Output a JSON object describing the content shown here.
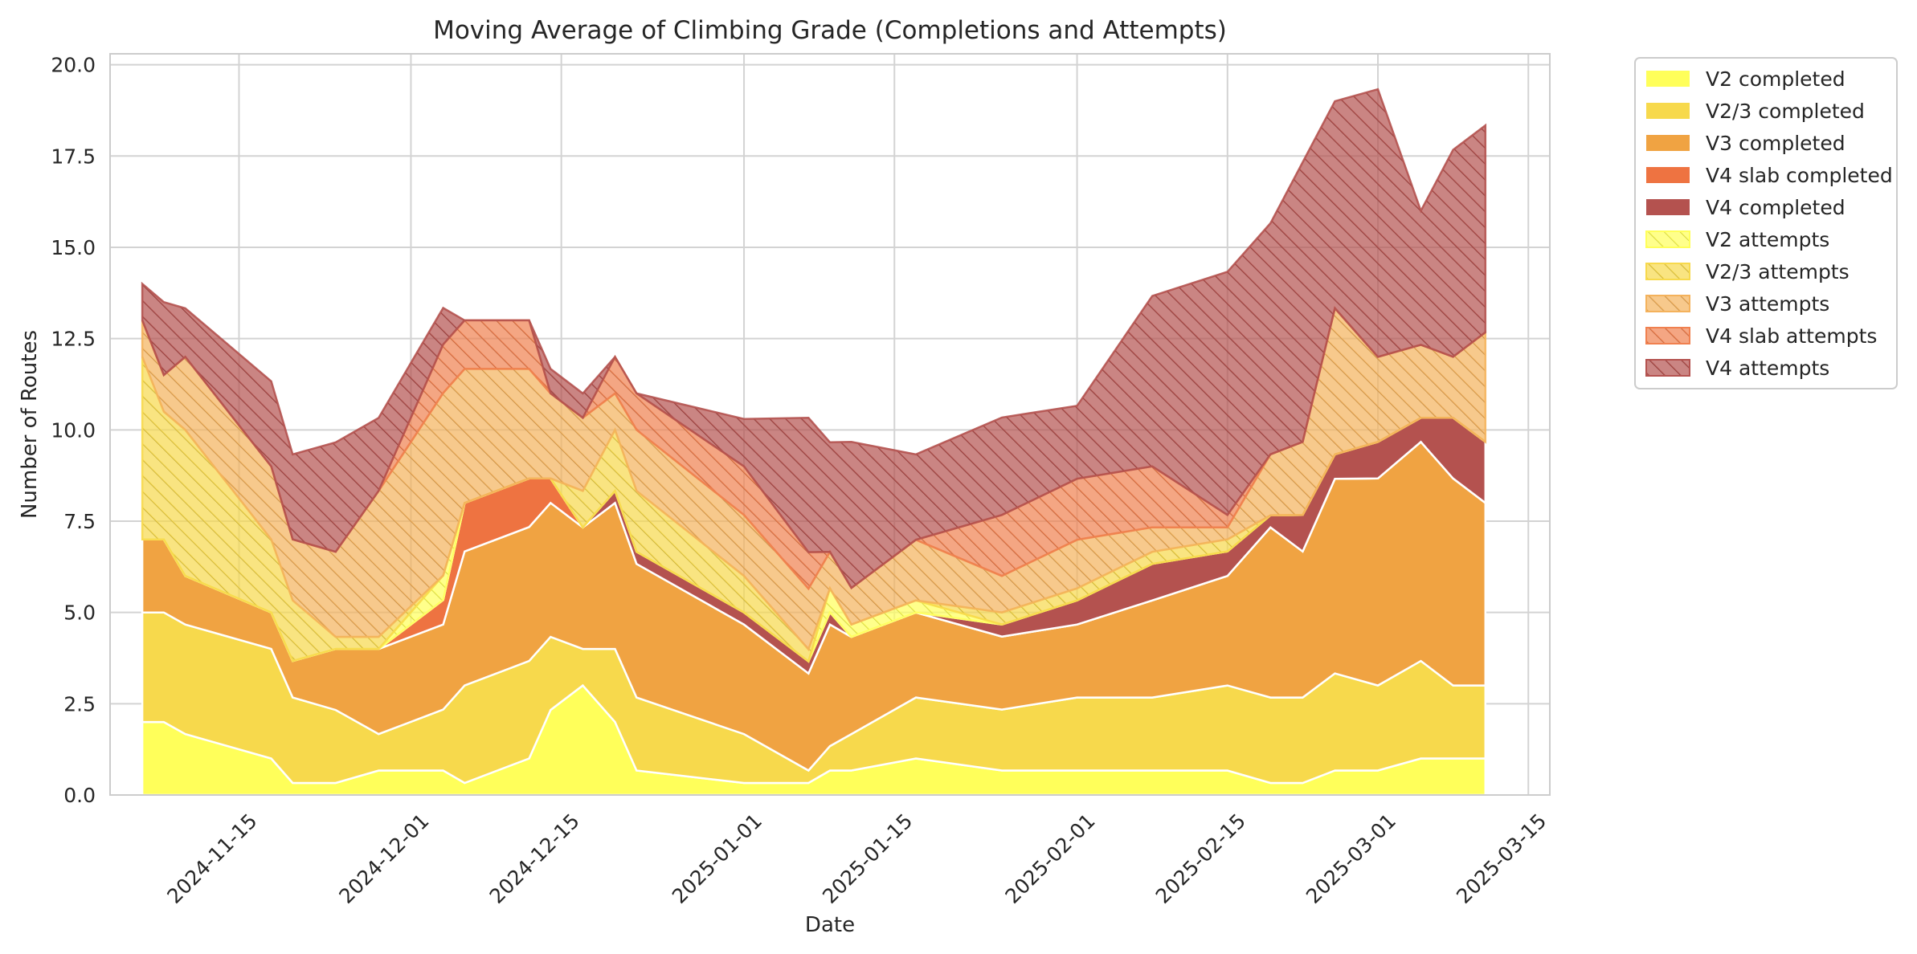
{
  "chart_data": {
    "type": "area",
    "title": "Moving Average of Climbing Grade (Completions and Attempts)",
    "xlabel": "Date",
    "ylabel": "Number of Routes",
    "ylim": [
      0,
      20.3
    ],
    "xlim": [
      "2024-11-03",
      "2025-03-17"
    ],
    "grid": true,
    "legend": "outside-right",
    "x_ticks": [
      "2024-11-15",
      "2024-12-01",
      "2024-12-15",
      "2025-01-01",
      "2025-01-15",
      "2025-02-01",
      "2025-02-15",
      "2025-03-01",
      "2025-03-15"
    ],
    "y_ticks": [
      "0.0",
      "2.5",
      "5.0",
      "7.5",
      "10.0",
      "12.5",
      "15.0",
      "17.5",
      "20.0"
    ],
    "x": [
      "2024-11-06",
      "2024-11-08",
      "2024-11-10",
      "2024-11-18",
      "2024-11-20",
      "2024-11-24",
      "2024-11-28",
      "2024-12-04",
      "2024-12-06",
      "2024-12-12",
      "2024-12-14",
      "2024-12-17",
      "2024-12-20",
      "2024-12-22",
      "2025-01-01",
      "2025-01-07",
      "2025-01-09",
      "2025-01-11",
      "2025-01-17",
      "2025-01-25",
      "2025-02-01",
      "2025-02-08",
      "2025-02-15",
      "2025-02-19",
      "2025-02-22",
      "2025-02-25",
      "2025-03-01",
      "2025-03-05",
      "2025-03-08",
      "2025-03-11"
    ],
    "series": [
      {
        "name": "V2 completed",
        "color": "#ffff5a",
        "hatch": false,
        "values": [
          2.0,
          2.0,
          1.67,
          1.0,
          0.33,
          0.33,
          0.67,
          0.67,
          0.33,
          1.0,
          2.33,
          3.0,
          2.0,
          0.67,
          0.33,
          0.33,
          0.67,
          0.67,
          1.0,
          0.67,
          0.67,
          0.67,
          0.67,
          0.33,
          0.33,
          0.67,
          0.67,
          1.0,
          1.0,
          1.0
        ]
      },
      {
        "name": "V2/3 completed",
        "color": "#f7d94c",
        "hatch": false,
        "values": [
          3.0,
          3.0,
          3.0,
          3.0,
          2.34,
          2.0,
          1.0,
          1.67,
          2.67,
          2.67,
          2.0,
          1.0,
          2.0,
          2.0,
          1.34,
          0.34,
          0.67,
          1.0,
          1.67,
          1.67,
          2.0,
          2.0,
          2.33,
          2.34,
          2.34,
          2.66,
          2.33,
          2.67,
          2.0,
          2.0
        ]
      },
      {
        "name": "V3 completed",
        "color": "#f0a342",
        "hatch": false,
        "values": [
          2.0,
          2.0,
          1.33,
          1.0,
          1.0,
          1.67,
          2.33,
          2.33,
          3.67,
          3.67,
          3.67,
          3.33,
          4.0,
          3.66,
          3.0,
          2.66,
          3.33,
          2.66,
          2.33,
          2.0,
          2.0,
          2.66,
          3.0,
          4.66,
          4.0,
          5.33,
          5.67,
          6.0,
          5.67,
          5.0
        ]
      },
      {
        "name": "V4 slab completed",
        "color": "#ee7341",
        "hatch": false,
        "values": [
          0,
          0,
          0,
          0,
          0,
          0,
          0,
          0.67,
          1.33,
          1.33,
          0.67,
          0,
          0,
          0,
          0,
          0,
          0,
          0,
          0,
          0,
          0,
          0,
          0,
          0,
          0,
          0,
          0,
          0,
          0,
          0
        ]
      },
      {
        "name": "V4 completed",
        "color": "#b4524f",
        "hatch": false,
        "values": [
          0,
          0,
          0,
          0,
          0,
          0,
          0,
          0,
          0,
          0,
          0,
          0,
          0.33,
          0.33,
          0.33,
          0.33,
          0.33,
          0,
          0,
          0.33,
          0.66,
          1.0,
          0.67,
          0.33,
          1.0,
          0.67,
          1.0,
          0.66,
          1.66,
          1.67
        ]
      },
      {
        "name": "V2 attempts",
        "color": "#ffff5a",
        "hatch": true,
        "values": [
          0,
          0,
          0,
          0,
          0,
          0,
          0,
          0.67,
          0,
          0,
          0,
          0,
          0,
          0,
          0,
          0,
          0.66,
          0.34,
          0.33,
          0,
          0,
          0,
          0,
          0,
          0,
          0,
          0,
          0,
          0,
          0
        ]
      },
      {
        "name": "V2/3 attempts",
        "color": "#f7d94c",
        "hatch": true,
        "values": [
          5.0,
          3.5,
          4.0,
          2.0,
          1.66,
          0.33,
          0.33,
          0,
          0,
          0,
          0,
          1.0,
          1.67,
          1.67,
          1.0,
          0.33,
          0,
          0,
          0,
          0.33,
          0.33,
          0.33,
          0.33,
          0,
          0,
          0,
          0,
          0,
          0,
          0
        ]
      },
      {
        "name": "V3 attempts",
        "color": "#f4b25c",
        "hatch": true,
        "values": [
          1.0,
          1.0,
          2.0,
          2.0,
          1.67,
          2.33,
          4.0,
          5.0,
          3.67,
          3.0,
          2.33,
          2.0,
          1.0,
          1.67,
          1.67,
          1.66,
          1.0,
          1.0,
          1.66,
          1.0,
          1.33,
          0.67,
          0.33,
          1.67,
          2.0,
          4.0,
          2.33,
          2.0,
          1.67,
          3.0
        ]
      },
      {
        "name": "V4 slab attempts",
        "color": "#f0804f",
        "hatch": true,
        "values": [
          0,
          0,
          0,
          0,
          0,
          0,
          0,
          1.33,
          1.33,
          1.33,
          0,
          0,
          1.0,
          1.0,
          1.33,
          1.0,
          0,
          0,
          0,
          1.67,
          1.67,
          1.67,
          0.34,
          0,
          0,
          0,
          0,
          0,
          0,
          0
        ]
      },
      {
        "name": "V4 attempts",
        "color": "#b4524f",
        "hatch": true,
        "values": [
          1.0,
          2.0,
          1.33,
          2.33,
          2.33,
          3.0,
          2.0,
          1.0,
          0,
          0,
          0.67,
          0.67,
          0,
          0,
          1.3,
          3.68,
          3.0,
          4.0,
          2.34,
          2.67,
          2.0,
          4.67,
          6.66,
          6.33,
          7.66,
          5.67,
          7.33,
          3.67,
          5.67,
          5.67
        ]
      }
    ]
  }
}
